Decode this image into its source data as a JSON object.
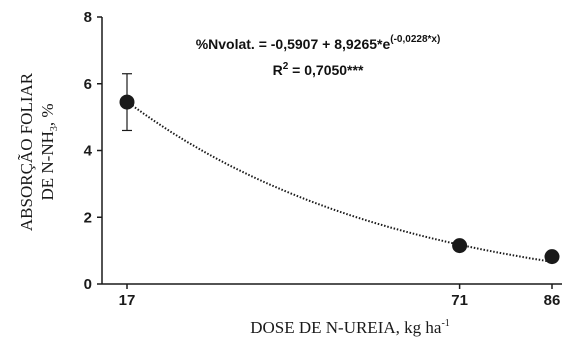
{
  "chart_data": {
    "type": "scatter",
    "xlabel": {
      "main": "DOSE DE N-UREIA, kg ha",
      "sup": "-1"
    },
    "ylabel": {
      "line1": "ABSORÇÃO FOLIAR",
      "line2_pre": "DE N-NH",
      "line2_sub": "3",
      "line2_post": ", %"
    },
    "x_ticks": [
      17,
      71,
      86
    ],
    "y_ticks": [
      0,
      2,
      4,
      6,
      8
    ],
    "xlim": [
      17,
      86
    ],
    "ylim": [
      0,
      8
    ],
    "points": [
      {
        "x": 17,
        "y": 5.45,
        "err": 0.85
      },
      {
        "x": 71,
        "y": 1.15
      },
      {
        "x": 86,
        "y": 0.82
      }
    ],
    "fit": {
      "a": -0.5907,
      "b": 8.9265,
      "k": -0.0228
    },
    "equation": {
      "pre": "%Nvolat. = -0,5907 + 8,9265*e",
      "exp": "(-0,0228*x)"
    },
    "r2": {
      "pre": "R",
      "sup": "2",
      "post": " = 0,7050***"
    },
    "colors": {
      "marker": "#1a1a1a",
      "line": "#1a1a1a",
      "axis": "#1a1a1a"
    }
  }
}
